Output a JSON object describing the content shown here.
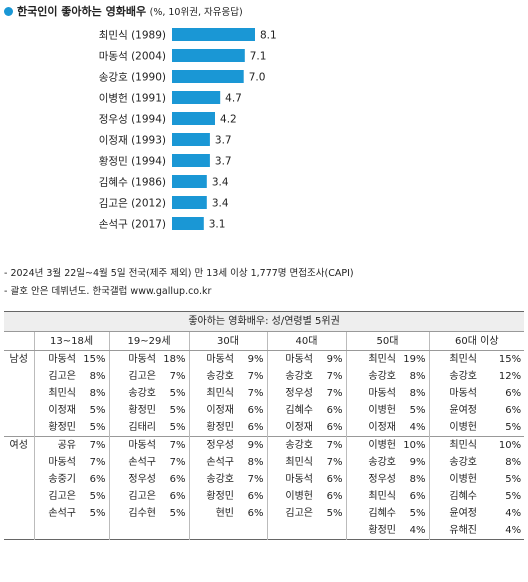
{
  "title": {
    "main": "한국인이 좋아하는 영화배우",
    "sub": "(%, 10위권, 자유응답)"
  },
  "chart_data": {
    "type": "bar",
    "orientation": "horizontal",
    "categories": [
      "최민식 (1989)",
      "마동석 (2004)",
      "송강호 (1990)",
      "이병헌 (1991)",
      "정우성 (1994)",
      "이정재 (1993)",
      "황정민 (1994)",
      "김혜수 (1986)",
      "김고은 (2012)",
      "손석구 (2017)"
    ],
    "values": [
      8.1,
      7.1,
      7.0,
      4.7,
      4.2,
      3.7,
      3.7,
      3.4,
      3.4,
      3.1
    ],
    "value_labels": [
      "8.1",
      "7.1",
      "7.0",
      "4.7",
      "4.2",
      "3.7",
      "3.7",
      "3.4",
      "3.4",
      "3.1"
    ],
    "bar_color": "#1a97d5",
    "xlim": [
      0,
      8.1
    ]
  },
  "notes": [
    "- 2024년 3월 22일~4월 5일 전국(제주 제외) 만 13세 이상 1,777명 면접조사(CAPI)",
    "- 괄호 안은 데뷔년도. 한국갤럽 www.gallup.co.kr"
  ],
  "table": {
    "caption": "좋아하는 영화배우: 성/연령별 5위권",
    "headers": [
      "13~18세",
      "19~29세",
      "30대",
      "40대",
      "50대",
      "60대 이상"
    ],
    "groups": [
      {
        "label": "남성",
        "rows": [
          [
            [
              "마동석",
              "15%"
            ],
            [
              "마동석",
              "18%"
            ],
            [
              "마동석",
              "9%"
            ],
            [
              "마동석",
              "9%"
            ],
            [
              "최민식",
              "19%"
            ],
            [
              "최민식",
              "15%"
            ]
          ],
          [
            [
              "김고은",
              "8%"
            ],
            [
              "김고은",
              "7%"
            ],
            [
              "송강호",
              "7%"
            ],
            [
              "송강호",
              "7%"
            ],
            [
              "송강호",
              "8%"
            ],
            [
              "송강호",
              "12%"
            ]
          ],
          [
            [
              "최민식",
              "8%"
            ],
            [
              "송강호",
              "5%"
            ],
            [
              "최민식",
              "7%"
            ],
            [
              "정우성",
              "7%"
            ],
            [
              "마동석",
              "8%"
            ],
            [
              "마동석",
              "6%"
            ]
          ],
          [
            [
              "이정재",
              "5%"
            ],
            [
              "황정민",
              "5%"
            ],
            [
              "이정재",
              "6%"
            ],
            [
              "김혜수",
              "6%"
            ],
            [
              "이병헌",
              "5%"
            ],
            [
              "윤여정",
              "6%"
            ]
          ],
          [
            [
              "황정민",
              "5%"
            ],
            [
              "김태리",
              "5%"
            ],
            [
              "황정민",
              "6%"
            ],
            [
              "이정재",
              "6%"
            ],
            [
              "이정재",
              "4%"
            ],
            [
              "이병헌",
              "5%"
            ]
          ]
        ]
      },
      {
        "label": "여성",
        "rows": [
          [
            [
              "공유",
              "7%"
            ],
            [
              "마동석",
              "7%"
            ],
            [
              "정우성",
              "9%"
            ],
            [
              "송강호",
              "7%"
            ],
            [
              "이병헌",
              "10%"
            ],
            [
              "최민식",
              "10%"
            ]
          ],
          [
            [
              "마동석",
              "7%"
            ],
            [
              "손석구",
              "7%"
            ],
            [
              "손석구",
              "8%"
            ],
            [
              "최민식",
              "7%"
            ],
            [
              "송강호",
              "9%"
            ],
            [
              "송강호",
              "8%"
            ]
          ],
          [
            [
              "송중기",
              "6%"
            ],
            [
              "정우성",
              "6%"
            ],
            [
              "송강호",
              "7%"
            ],
            [
              "마동석",
              "6%"
            ],
            [
              "정우성",
              "8%"
            ],
            [
              "이병헌",
              "5%"
            ]
          ],
          [
            [
              "김고은",
              "5%"
            ],
            [
              "김고은",
              "6%"
            ],
            [
              "황정민",
              "6%"
            ],
            [
              "이병헌",
              "6%"
            ],
            [
              "최민식",
              "6%"
            ],
            [
              "김혜수",
              "5%"
            ]
          ],
          [
            [
              "손석구",
              "5%"
            ],
            [
              "김수현",
              "5%"
            ],
            [
              "현빈",
              "6%"
            ],
            [
              "김고은",
              "5%"
            ],
            [
              "김혜수",
              "5%"
            ],
            [
              "윤여정",
              "4%"
            ]
          ],
          [
            [
              "",
              ""
            ],
            [
              "",
              ""
            ],
            [
              "",
              ""
            ],
            [
              "",
              ""
            ],
            [
              "황정민",
              "4%"
            ],
            [
              "유해진",
              "4%"
            ]
          ]
        ]
      }
    ]
  }
}
